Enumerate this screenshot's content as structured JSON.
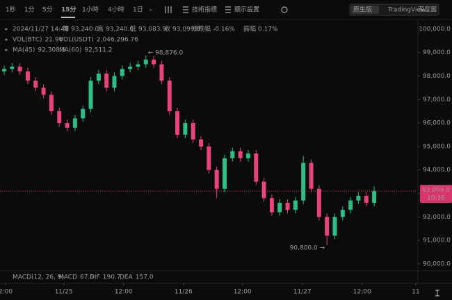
{
  "toolbar": {
    "intervals": [
      "1秒",
      "1分",
      "5分",
      "15分",
      "1小時",
      "4小時",
      "1日"
    ],
    "active_interval": "15分",
    "indicators": "技術指標",
    "display": "顯示設置",
    "views": [
      "原生版",
      "TradingView",
      "深度圖"
    ],
    "active_view": "原生版"
  },
  "info": {
    "date": "2024/11/27 14:45",
    "fields": [
      {
        "label": "開",
        "value": "93,240.0"
      },
      {
        "label": "高",
        "value": "93,240.0"
      },
      {
        "label": "低",
        "value": "93,083.9"
      },
      {
        "label": "收",
        "value": "93,099.8"
      },
      {
        "label": "漲跌幅",
        "value": "-0.16%"
      },
      {
        "label": "振幅",
        "value": "0.17%"
      }
    ],
    "volume": [
      {
        "label": "VOL(BTC)",
        "value": "21.96"
      },
      {
        "label": "VOL(USDT)",
        "value": "2,046,296.76"
      }
    ],
    "ma": [
      {
        "label": "MA(45)",
        "value": "92,308.5"
      },
      {
        "label": "MA(60)",
        "value": "92,511.2"
      }
    ],
    "macd": [
      {
        "label": "MACD(12, 26, 9)",
        "value": null
      },
      {
        "label": "MACD",
        "value": "67.6"
      },
      {
        "label": "DIF",
        "value": "190.7"
      },
      {
        "label": "DEA",
        "value": "157.0"
      }
    ]
  },
  "chart_data": {
    "type": "candlestick",
    "up_color": "#2ebd85",
    "down_color": "#e6457a",
    "categories": [
      null,
      null,
      null,
      null,
      null,
      null,
      null,
      null,
      null,
      null,
      null,
      null,
      null,
      null,
      null,
      null,
      null,
      null,
      null,
      null,
      null,
      null,
      null,
      null,
      null,
      null,
      null,
      null,
      null,
      null,
      null,
      null,
      null,
      null,
      null,
      null,
      null,
      null,
      null,
      null,
      null,
      null,
      null,
      null,
      null,
      null,
      null,
      null
    ],
    "open": [
      98200,
      98300,
      98400,
      98200,
      97800,
      97500,
      97200,
      96500,
      96000,
      95800,
      96200,
      96600,
      97800,
      98100,
      97500,
      98000,
      98300,
      98400,
      98500,
      98700,
      98500,
      97800,
      96500,
      95500,
      96000,
      95300,
      95000,
      94000,
      93200,
      94500,
      94800,
      94500,
      94700,
      93500,
      92800,
      92200,
      92600,
      92300,
      92700,
      94300,
      93200,
      92000,
      91200,
      92000,
      92300,
      92700,
      92900,
      92600
    ],
    "high": [
      98450,
      98550,
      98550,
      98350,
      97950,
      97650,
      97350,
      96650,
      96150,
      96350,
      96750,
      97950,
      98250,
      98250,
      98150,
      98450,
      98550,
      98650,
      98876,
      98850,
      98650,
      97950,
      96650,
      96150,
      96150,
      95450,
      95150,
      94150,
      94650,
      94950,
      94950,
      94850,
      94850,
      93650,
      92950,
      92750,
      92750,
      92850,
      94600,
      94450,
      93350,
      92150,
      92150,
      92450,
      92850,
      93050,
      93050,
      93300
    ],
    "low": [
      98050,
      98150,
      98050,
      97650,
      97350,
      97050,
      96350,
      95850,
      95650,
      95650,
      96050,
      96450,
      97650,
      97350,
      97350,
      97850,
      98150,
      98250,
      98350,
      98350,
      97650,
      96350,
      95350,
      95350,
      95150,
      94850,
      93850,
      92800,
      93050,
      94350,
      94350,
      94350,
      93350,
      92650,
      92050,
      92050,
      92150,
      92150,
      92550,
      93050,
      91850,
      90800,
      91050,
      91850,
      92150,
      92550,
      92450,
      92450
    ],
    "close": [
      98300,
      98400,
      98200,
      97800,
      97500,
      97200,
      96500,
      96000,
      95800,
      96200,
      96600,
      97800,
      98100,
      97500,
      98000,
      98300,
      98400,
      98500,
      98700,
      98500,
      97800,
      96500,
      95500,
      96000,
      95300,
      95000,
      94000,
      93200,
      94500,
      94800,
      94500,
      94700,
      93500,
      92800,
      92200,
      92600,
      92300,
      92700,
      94300,
      93200,
      92000,
      91200,
      92000,
      92300,
      92700,
      92900,
      92600,
      93099.8
    ],
    "xlim": [
      0,
      53
    ],
    "xticks": [
      {
        "value": 0.7,
        "label": "2:00"
      },
      {
        "value": 8.1,
        "label": "11/25"
      },
      {
        "value": 15.7,
        "label": "12:00"
      },
      {
        "value": 23.3,
        "label": "11/26"
      },
      {
        "value": 30.8,
        "label": "12:00"
      },
      {
        "value": 38.4,
        "label": "11/27"
      },
      {
        "value": 46,
        "label": "12:00"
      },
      {
        "value": 53,
        "label": "11"
      }
    ],
    "ylim": [
      89600,
      100350
    ],
    "yticks": [
      {
        "value": 90000,
        "label": "90,000.0"
      },
      {
        "value": 91000,
        "label": "91,000.0"
      },
      {
        "value": 92000,
        "label": "92,000.0"
      },
      {
        "value": 93000,
        "label": "93,000.0"
      },
      {
        "value": 94000,
        "label": "94,000.0"
      },
      {
        "value": 95000,
        "label": "95,000.0"
      },
      {
        "value": 96000,
        "label": "96,000.0"
      },
      {
        "value": 97000,
        "label": "97,000.0"
      },
      {
        "value": 98000,
        "label": "98,000.0"
      },
      {
        "value": 99000,
        "label": "99,000.0"
      },
      {
        "value": 100000,
        "label": "100,000.0"
      }
    ],
    "grid": false,
    "annotations": [
      {
        "value": 98876,
        "label": "← 98,876.0",
        "index": 18
      },
      {
        "value": 90800,
        "label": "90,800.0 →",
        "index": 41
      }
    ],
    "last_price": {
      "value": 93099.8,
      "label": "93,099.8",
      "time": "10:36"
    }
  }
}
